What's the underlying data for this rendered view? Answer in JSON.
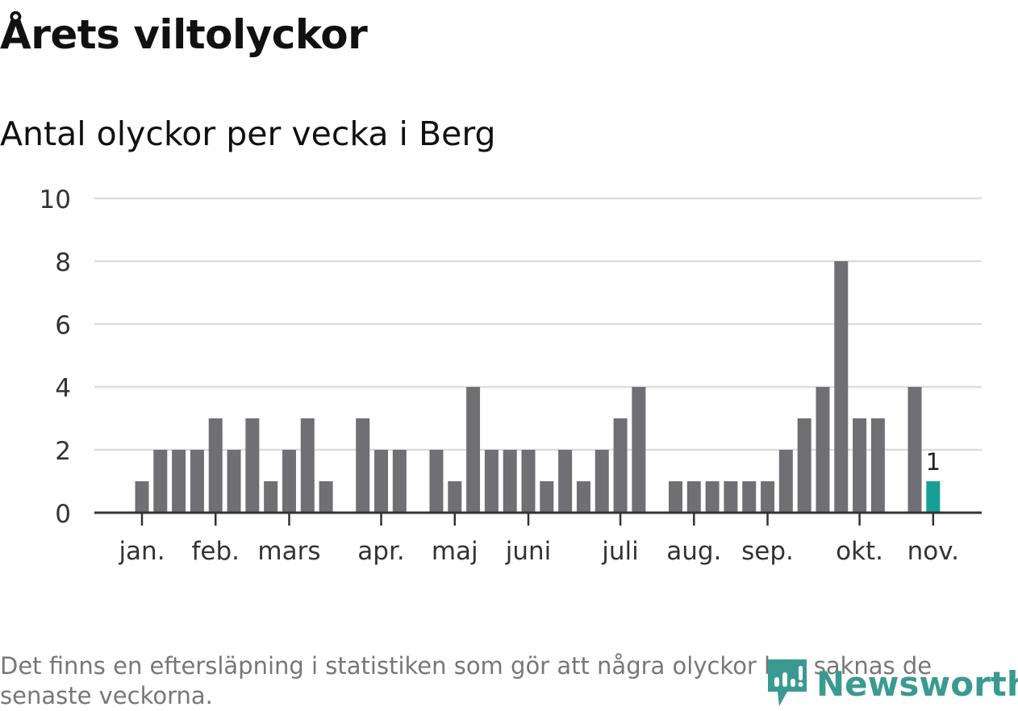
{
  "title": "Årets viltolyckor",
  "subtitle": "Antal olyckor per vecka i Berg",
  "note": "Det finns en eftersläpning i statistiken som gör att några olyckor kan saknas de senaste veckorna.",
  "logo": "Newsworthy",
  "colors": {
    "bar": "#706f74",
    "highlight": "#16a095",
    "grid": "#dddddd",
    "axis": "#333333"
  },
  "chart_data": {
    "type": "bar",
    "title": "Antal olyckor per vecka i Berg",
    "xlabel": "",
    "ylabel": "",
    "ylim": [
      0,
      10
    ],
    "yticks": [
      0,
      2,
      4,
      6,
      8,
      10
    ],
    "grid": true,
    "weeks": [
      1,
      2,
      3,
      4,
      5,
      6,
      7,
      8,
      9,
      10,
      11,
      12,
      13,
      14,
      15,
      16,
      17,
      18,
      19,
      20,
      21,
      22,
      23,
      24,
      25,
      26,
      27,
      28,
      29,
      30,
      31,
      32,
      33,
      34,
      35,
      36,
      37,
      38,
      39,
      40,
      41,
      42,
      43,
      44
    ],
    "values": [
      1,
      2,
      2,
      2,
      3,
      2,
      3,
      1,
      2,
      3,
      1,
      0,
      3,
      2,
      2,
      0,
      2,
      1,
      4,
      2,
      2,
      2,
      1,
      2,
      1,
      2,
      3,
      4,
      0,
      1,
      1,
      1,
      1,
      1,
      1,
      2,
      3,
      4,
      8,
      3,
      3,
      0,
      4,
      1
    ],
    "highlight_index": 43,
    "highlight_label": "1",
    "month_ticks": [
      {
        "label": "jan.",
        "week_index": 0
      },
      {
        "label": "feb.",
        "week_index": 4
      },
      {
        "label": "mars",
        "week_index": 8
      },
      {
        "label": "apr.",
        "week_index": 13
      },
      {
        "label": "maj",
        "week_index": 17
      },
      {
        "label": "juni",
        "week_index": 21
      },
      {
        "label": "juli",
        "week_index": 26
      },
      {
        "label": "aug.",
        "week_index": 30
      },
      {
        "label": "sep.",
        "week_index": 34
      },
      {
        "label": "okt.",
        "week_index": 39
      },
      {
        "label": "nov.",
        "week_index": 43
      }
    ]
  }
}
